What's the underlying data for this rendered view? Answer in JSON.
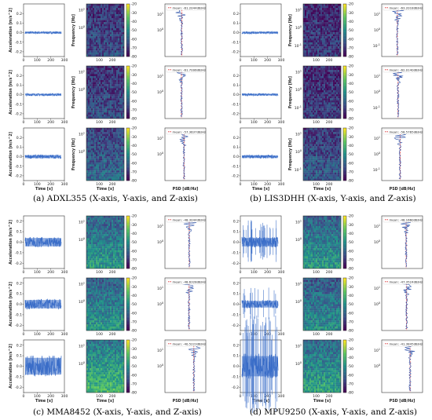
{
  "captions": [
    "(a) ADXL355 (X-axis, Y-axis, and Z-axis)",
    "(b) LIS3DHH (X-axis, Y-axis, and Z-axis)",
    "(c) MMA8452 (X-axis, Y-axis, and Z-axis)",
    "(d) MPU9250 (X-axis, Y-axis, and Z-axis)"
  ],
  "chart_data": {
    "type": "figure-grid",
    "panels": [
      {
        "sensor": "ADXL355",
        "rows": [
          {
            "time_signal": {
              "ylabel": "Acceleration [m/s^2]",
              "xlabel": "",
              "ylim": [
                -0.25,
                0.3
              ],
              "yticks": [
                "0.2",
                "0.1",
                "0.0",
                "-0.1",
                "-0.2"
              ],
              "xticks": [
                "0",
                "100",
                "200",
                "300"
              ],
              "mean_level": 0.0,
              "amplitude": 0.012,
              "spikes": 0
            },
            "spectrogram": {
              "ylabel": "Frequency [Hz]",
              "xlabel": "",
              "xticks": [
                "100",
                "200"
              ],
              "yticks": [
                "10^1",
                "10^0"
              ],
              "colorbar_ticks": [
                "-20",
                "-30",
                "-40",
                "-50",
                "-60",
                "-70",
                "-80"
              ],
              "colorbar_range": [
                -80,
                -20
              ],
              "intensity": 0.25
            },
            "psd": {
              "legend": "mean: -61.2044dB/Hz",
              "mean_dbhz": -61.2044,
              "xlabel": "",
              "yticks": [
                "10^1",
                "10^0"
              ]
            }
          },
          {
            "time_signal": {
              "ylabel": "Acceleration [m/s^2]",
              "xlabel": "",
              "ylim": [
                -0.25,
                0.3
              ],
              "yticks": [
                "0.2",
                "0.1",
                "0.0",
                "-0.1",
                "-0.2"
              ],
              "xticks": [
                "0",
                "100",
                "200",
                "300"
              ],
              "mean_level": 0.0,
              "amplitude": 0.012,
              "spikes": 0
            },
            "spectrogram": {
              "ylabel": "Frequency [Hz]",
              "xlabel": "",
              "xticks": [
                "100",
                "200"
              ],
              "yticks": [
                "10^1",
                "10^0"
              ],
              "colorbar_ticks": [
                "-20",
                "-30",
                "-40",
                "-50",
                "-60",
                "-70",
                "-80"
              ],
              "colorbar_range": [
                -80,
                -20
              ],
              "intensity": 0.25
            },
            "psd": {
              "legend": "mean: -61.7006dB/Hz",
              "mean_dbhz": -61.7006,
              "xlabel": "",
              "yticks": [
                "10^1",
                "10^0"
              ]
            }
          },
          {
            "time_signal": {
              "ylabel": "Acceleration [m/s^2]",
              "xlabel": "Time [s]",
              "ylim": [
                -0.25,
                0.3
              ],
              "yticks": [
                "0.2",
                "0.1",
                "0.0",
                "-0.1",
                "-0.2"
              ],
              "xticks": [
                "0",
                "100",
                "200",
                "300"
              ],
              "mean_level": 0.0,
              "amplitude": 0.02,
              "spikes": 0
            },
            "spectrogram": {
              "ylabel": "Frequency [Hz]",
              "xlabel": "Time [s]",
              "xticks": [
                "100",
                "200"
              ],
              "yticks": [
                "10^1",
                "10^0"
              ],
              "colorbar_ticks": [
                "-20",
                "-30",
                "-40",
                "-50",
                "-60",
                "-70",
                "-80"
              ],
              "colorbar_range": [
                -80,
                -20
              ],
              "intensity": 0.35
            },
            "psd": {
              "legend": "mean: -57.3637dB/Hz",
              "mean_dbhz": -57.3637,
              "xlabel": "PSD [dB/Hz]",
              "yticks": [
                "10^1",
                "10^0"
              ]
            }
          }
        ]
      },
      {
        "sensor": "LIS3DHH",
        "rows": [
          {
            "time_signal": {
              "ylabel": "",
              "xlabel": "",
              "ylim": [
                -0.25,
                0.3
              ],
              "yticks": [
                "0.2",
                "0.1",
                "0.0",
                "-0.1",
                "-0.2"
              ],
              "xticks": [
                "0",
                "100",
                "200",
                "300"
              ],
              "mean_level": 0.0,
              "amplitude": 0.012,
              "spikes": 0
            },
            "spectrogram": {
              "ylabel": "Frequency [Hz]",
              "xlabel": "",
              "xticks": [
                "100",
                "200"
              ],
              "yticks": [
                "10^1",
                "10^0",
                "10^-1"
              ],
              "colorbar_ticks": [
                "-20",
                "-30",
                "-40",
                "-50",
                "-60",
                "-70",
                "-80"
              ],
              "colorbar_range": [
                -80,
                -20
              ],
              "intensity": 0.2
            },
            "psd": {
              "legend": "mean: -63.2018dB/Hz",
              "mean_dbhz": -63.2018,
              "xlabel": "",
              "yticks": [
                "10^1",
                "10^0",
                "10^-1"
              ]
            }
          },
          {
            "time_signal": {
              "ylabel": "",
              "xlabel": "",
              "ylim": [
                -0.25,
                0.3
              ],
              "yticks": [
                "0.2",
                "0.1",
                "0.0",
                "-0.1",
                "-0.2"
              ],
              "xticks": [
                "0",
                "100",
                "200",
                "300"
              ],
              "mean_level": 0.0,
              "amplitude": 0.012,
              "spikes": 0
            },
            "spectrogram": {
              "ylabel": "Frequency [Hz]",
              "xlabel": "",
              "xticks": [
                "100",
                "200"
              ],
              "yticks": [
                "10^1",
                "10^0",
                "10^-1"
              ],
              "colorbar_ticks": [
                "-20",
                "-30",
                "-40",
                "-50",
                "-60",
                "-70",
                "-80"
              ],
              "colorbar_range": [
                -80,
                -20
              ],
              "intensity": 0.2
            },
            "psd": {
              "legend": "mean: -62.0140dB/Hz",
              "mean_dbhz": -62.014,
              "xlabel": "",
              "yticks": [
                "10^1",
                "10^0",
                "10^-1"
              ]
            }
          },
          {
            "time_signal": {
              "ylabel": "",
              "xlabel": "Time [s]",
              "ylim": [
                -0.25,
                0.3
              ],
              "yticks": [
                "0.2",
                "0.1",
                "0.0",
                "-0.1",
                "-0.2"
              ],
              "xticks": [
                "0",
                "100",
                "200",
                "300"
              ],
              "mean_level": 0.0,
              "amplitude": 0.018,
              "spikes": 0
            },
            "spectrogram": {
              "ylabel": "Frequency [Hz]",
              "xlabel": "Time [s]",
              "xticks": [
                "100",
                "200"
              ],
              "yticks": [
                "10^1",
                "10^0",
                "10^-1"
              ],
              "colorbar_ticks": [
                "-20",
                "-30",
                "-40",
                "-50",
                "-60",
                "-70",
                "-80"
              ],
              "colorbar_range": [
                -80,
                -20
              ],
              "intensity": 0.3
            },
            "psd": {
              "legend": "mean: -58.5765dB/Hz",
              "mean_dbhz": -58.5765,
              "xlabel": "PSD [dB/Hz]",
              "yticks": [
                "10^1",
                "10^0",
                "10^-1"
              ]
            }
          }
        ]
      },
      {
        "sensor": "MMA8452",
        "rows": [
          {
            "time_signal": {
              "ylabel": "Acceleration [m/s^2]",
              "xlabel": "",
              "ylim": [
                -0.25,
                0.25
              ],
              "yticks": [
                "0.2",
                "0.1",
                "0.0",
                "-0.1",
                "-0.2"
              ],
              "xticks": [
                "0",
                "100",
                "200",
                "300"
              ],
              "mean_level": 0.0,
              "amplitude": 0.05,
              "spikes": 0
            },
            "spectrogram": {
              "ylabel": "",
              "xlabel": "",
              "xticks": [
                "100",
                "200"
              ],
              "yticks": [
                "10^1",
                "10^0"
              ],
              "colorbar_ticks": [
                "-20",
                "-30",
                "-40",
                "-50",
                "-60",
                "-70",
                "-80"
              ],
              "colorbar_range": [
                -80,
                -20
              ],
              "intensity": 0.55
            },
            "psd": {
              "legend": "mean: -48.3044dB/Hz",
              "mean_dbhz": -48.3044,
              "xlabel": "",
              "yticks": [
                "10^1",
                "10^0"
              ]
            }
          },
          {
            "time_signal": {
              "ylabel": "Acceleration [m/s^2]",
              "xlabel": "",
              "ylim": [
                -0.25,
                0.25
              ],
              "yticks": [
                "0.2",
                "0.1",
                "0.0",
                "-0.1",
                "-0.2"
              ],
              "xticks": [
                "0",
                "100",
                "200",
                "300"
              ],
              "mean_level": 0.0,
              "amplitude": 0.05,
              "spikes": 0
            },
            "spectrogram": {
              "ylabel": "",
              "xlabel": "",
              "xticks": [
                "100",
                "200"
              ],
              "yticks": [
                "10^1",
                "10^0"
              ],
              "colorbar_ticks": [
                "-20",
                "-30",
                "-40",
                "-50",
                "-60",
                "-70",
                "-80"
              ],
              "colorbar_range": [
                -80,
                -20
              ],
              "intensity": 0.55
            },
            "psd": {
              "legend": "mean: -48.6328dB/Hz",
              "mean_dbhz": -48.6328,
              "xlabel": "",
              "yticks": [
                "10^1",
                "10^0"
              ]
            }
          },
          {
            "time_signal": {
              "ylabel": "Acceleration [m/s^2]",
              "xlabel": "Time [s]",
              "ylim": [
                -0.25,
                0.25
              ],
              "yticks": [
                "0.2",
                "0.1",
                "0.0",
                "-0.1",
                "-0.2"
              ],
              "xticks": [
                "0",
                "100",
                "200",
                "300"
              ],
              "mean_level": 0.0,
              "amplitude": 0.1,
              "spikes": 0
            },
            "spectrogram": {
              "ylabel": "",
              "xlabel": "Time [s]",
              "xticks": [
                "100",
                "200"
              ],
              "yticks": [
                "10^1",
                "10^0"
              ],
              "colorbar_ticks": [
                "-20",
                "-30",
                "-40",
                "-50",
                "-60",
                "-70",
                "-80"
              ],
              "colorbar_range": [
                -80,
                -20
              ],
              "intensity": 0.7
            },
            "psd": {
              "legend": "mean: -40.5223dB/Hz",
              "mean_dbhz": -40.5223,
              "xlabel": "PSD [dB/Hz]",
              "yticks": [
                "10^1",
                "10^0"
              ]
            }
          }
        ]
      },
      {
        "sensor": "MPU9250",
        "rows": [
          {
            "time_signal": {
              "ylabel": "",
              "xlabel": "",
              "ylim": [
                -0.25,
                0.25
              ],
              "yticks": [
                "0.2",
                "0.1",
                "0.0",
                "-0.1",
                "-0.2"
              ],
              "xticks": [
                "0",
                "100",
                "200",
                "300"
              ],
              "mean_level": 0.0,
              "amplitude": 0.05,
              "spikes": 26
            },
            "spectrogram": {
              "ylabel": "",
              "xlabel": "",
              "xticks": [
                "100",
                "200"
              ],
              "yticks": [
                "10^1",
                "10^0"
              ],
              "colorbar_ticks": [
                "-20",
                "-30",
                "-40",
                "-50",
                "-60",
                "-70",
                "-80"
              ],
              "colorbar_range": [
                -80,
                -20
              ],
              "intensity": 0.55
            },
            "psd": {
              "legend": "mean: -48.1660dB/Hz",
              "mean_dbhz": -48.166,
              "xlabel": "",
              "yticks": [
                "10^1",
                "10^0"
              ]
            }
          },
          {
            "time_signal": {
              "ylabel": "",
              "xlabel": "",
              "ylim": [
                -0.25,
                0.25
              ],
              "yticks": [
                "0.2",
                "0.1",
                "0.0",
                "-0.1",
                "-0.2"
              ],
              "xticks": [
                "0",
                "100",
                "200",
                "300"
              ],
              "mean_level": 0.0,
              "amplitude": 0.04,
              "spikes": 12
            },
            "spectrogram": {
              "ylabel": "",
              "xlabel": "",
              "xticks": [
                "100",
                "200"
              ],
              "yticks": [
                "10^1",
                "10^0"
              ],
              "colorbar_ticks": [
                "-20",
                "-30",
                "-40",
                "-50",
                "-60",
                "-70",
                "-80"
              ],
              "colorbar_range": [
                -80,
                -20
              ],
              "intensity": 0.5
            },
            "psd": {
              "legend": "mean: -47.3524dB/Hz",
              "mean_dbhz": -47.3524,
              "xlabel": "",
              "yticks": [
                "10^1",
                "10^0"
              ]
            }
          },
          {
            "time_signal": {
              "ylabel": "",
              "xlabel": "Time [s]",
              "ylim": [
                -0.25,
                0.25
              ],
              "yticks": [
                "0.2",
                "0.1",
                "0.0",
                "-0.1",
                "-0.2"
              ],
              "xticks": [
                "0",
                "100",
                "200",
                "300"
              ],
              "mean_level": 0.0,
              "amplitude": 0.12,
              "spikes": 40
            },
            "spectrogram": {
              "ylabel": "",
              "xlabel": "Time [s]",
              "xticks": [
                "100",
                "200"
              ],
              "yticks": [
                "10^1",
                "10^0"
              ],
              "colorbar_ticks": [
                "-20",
                "-30",
                "-40",
                "-50",
                "-60",
                "-70",
                "-80"
              ],
              "colorbar_range": [
                -80,
                -20
              ],
              "intensity": 0.6
            },
            "psd": {
              "legend": "mean: -41.3845dB/Hz",
              "mean_dbhz": -41.3845,
              "xlabel": "PSD [dB/Hz]",
              "yticks": [
                "10^1",
                "10^0"
              ]
            }
          }
        ]
      }
    ]
  },
  "colors": {
    "signal": "#3b6ec8",
    "psd_curve": "#2a4fa8",
    "mean_line": "#d62728",
    "axis": "#333333"
  }
}
